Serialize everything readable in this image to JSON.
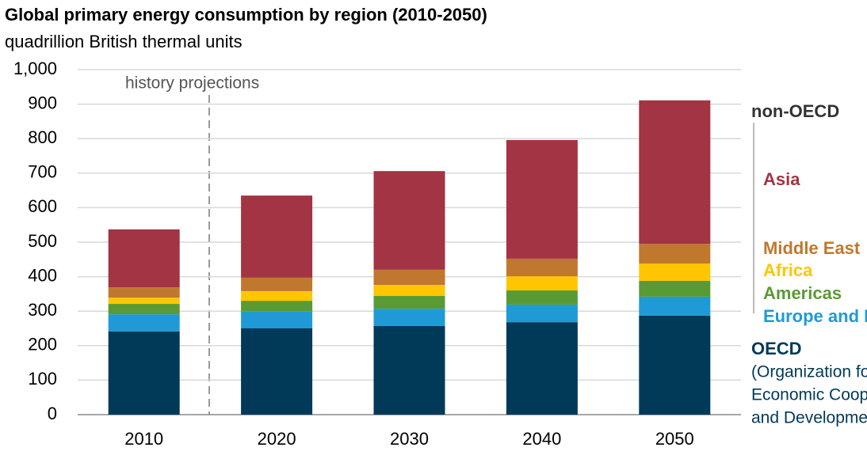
{
  "chart_data": {
    "type": "stacked_bar",
    "title": "Global primary energy consumption by region (2010-2050)",
    "subtitle": "quadrillion British thermal units",
    "annotation": "history projections",
    "group_labels": [
      "non-OECD",
      "OECD"
    ],
    "oecd_note": [
      "(Organization for",
      "Economic Cooperation",
      "and Development)"
    ],
    "categories": [
      "2010",
      "2020",
      "2030",
      "2040",
      "2050"
    ],
    "series": [
      {
        "name": "OECD",
        "color": "#003a58",
        "values": [
          241,
          250,
          257,
          268,
          287
        ]
      },
      {
        "name": "Europe and Eurasia",
        "color": "#1f9ad6",
        "values": [
          50,
          50,
          50,
          51,
          55
        ]
      },
      {
        "name": "Americas",
        "color": "#5a9a35",
        "values": [
          30,
          30,
          37,
          41,
          46
        ]
      },
      {
        "name": "Africa",
        "color": "#ffc600",
        "values": [
          18,
          28,
          32,
          41,
          50
        ]
      },
      {
        "name": "Middle East",
        "color": "#c0782e",
        "values": [
          30,
          39,
          44,
          51,
          57
        ]
      },
      {
        "name": "Asia",
        "color": "#a23443",
        "values": [
          168,
          238,
          286,
          344,
          416
        ]
      }
    ],
    "ylim": [
      0,
      1000
    ],
    "yticks": [
      0,
      100,
      200,
      300,
      400,
      500,
      600,
      700,
      800,
      900,
      {
        "value": 1000,
        "label": "1,000"
      }
    ],
    "grid": true
  }
}
